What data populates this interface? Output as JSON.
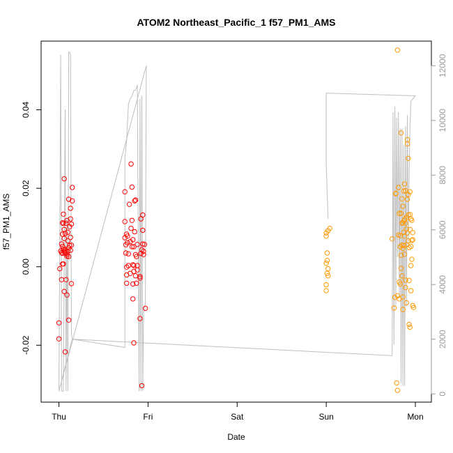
{
  "chart_data": {
    "type": "scatter",
    "title": "ATOM2 Northeast_Pacific_1 f57_PM1_AMS",
    "xlabel": "Date",
    "ylabel": "f57_PM1_AMS",
    "x_unit": "days since Thursday 00:00",
    "xlim": [
      -0.2,
      4.18
    ],
    "ylim": [
      -0.0345,
      0.0575
    ],
    "x_ticks": [
      {
        "value": 0,
        "label": "Thu"
      },
      {
        "value": 1,
        "label": "Fri"
      },
      {
        "value": 2,
        "label": "Sat"
      },
      {
        "value": 3,
        "label": "Sun"
      },
      {
        "value": 4,
        "label": "Mon"
      }
    ],
    "y_ticks": [
      {
        "value": -0.02,
        "label": "-0.02"
      },
      {
        "value": 0.0,
        "label": "0.00"
      },
      {
        "value": 0.02,
        "label": "0.02"
      },
      {
        "value": 0.04,
        "label": "0.04"
      }
    ],
    "y2_lim": [
      -300,
      12900
    ],
    "y2_ticks": [
      {
        "value": 0,
        "label": "0"
      },
      {
        "value": 2000,
        "label": "2000"
      },
      {
        "value": 4000,
        "label": "4000"
      },
      {
        "value": 6000,
        "label": "6000"
      },
      {
        "value": 8000,
        "label": "8000"
      },
      {
        "value": 10000,
        "label": "10000"
      },
      {
        "value": 12000,
        "label": "12000"
      }
    ],
    "grid": false,
    "colors": {
      "red_points": "#ff0000",
      "orange_points": "#ff9900",
      "altitude_line": "#bfbfbf",
      "right_axis": "#9a9a9a"
    },
    "series": [
      {
        "color": "#ff0000",
        "marker": "open-circle",
        "points": [
          [
            0.0,
            -0.0184
          ],
          [
            0.0,
            -0.0143
          ],
          [
            0.01,
            -0.0005
          ],
          [
            0.02,
            0.004
          ],
          [
            0.03,
            0.0058
          ],
          [
            0.03,
            0.0036
          ],
          [
            0.03,
            -0.0033
          ],
          [
            0.04,
            0.0007
          ],
          [
            0.04,
            0.0034
          ],
          [
            0.04,
            0.0083
          ],
          [
            0.04,
            0.0112
          ],
          [
            0.04,
            0.0052
          ],
          [
            0.05,
            0.0134
          ],
          [
            0.05,
            0.011
          ],
          [
            0.05,
            0.0045
          ],
          [
            0.05,
            0.0007
          ],
          [
            0.06,
            -0.0063
          ],
          [
            0.06,
            0.0039
          ],
          [
            0.06,
            0.0072
          ],
          [
            0.06,
            0.0224
          ],
          [
            0.06,
            0.0095
          ],
          [
            0.07,
            -0.0217
          ],
          [
            0.07,
            0.0085
          ],
          [
            0.07,
            0.0045
          ],
          [
            0.07,
            0.0035
          ],
          [
            0.08,
            -0.0033
          ],
          [
            0.08,
            0.0041
          ],
          [
            0.08,
            0.0111
          ],
          [
            0.09,
            -0.0072
          ],
          [
            0.09,
            0.0118
          ],
          [
            0.09,
            0.0032
          ],
          [
            0.09,
            0.0027
          ],
          [
            0.1,
            0.0039
          ],
          [
            0.1,
            0.0066
          ],
          [
            0.1,
            0.0088
          ],
          [
            0.11,
            0.0048
          ],
          [
            0.11,
            0.0026
          ],
          [
            0.11,
            -0.0136
          ],
          [
            0.11,
            0.0172
          ],
          [
            0.12,
            0.0102
          ],
          [
            0.12,
            0.0054
          ],
          [
            0.13,
            0.0122
          ],
          [
            0.13,
            0.0149
          ],
          [
            0.13,
            0.0075
          ],
          [
            0.13,
            0.0042
          ],
          [
            0.14,
            -0.0043
          ],
          [
            0.14,
            0.0109
          ],
          [
            0.14,
            0.0055
          ],
          [
            0.15,
            0.0202
          ],
          [
            0.15,
            0.0168
          ],
          [
            0.74,
            0.0191
          ],
          [
            0.74,
            0.0115
          ],
          [
            0.74,
            0.0074
          ],
          [
            0.75,
            0.0056
          ],
          [
            0.75,
            0.0035
          ],
          [
            0.76,
            -0.0001
          ],
          [
            0.76,
            -0.0042
          ],
          [
            0.76,
            -0.0021
          ],
          [
            0.76,
            0.0083
          ],
          [
            0.77,
            0.0078
          ],
          [
            0.77,
            0.0061
          ],
          [
            0.78,
            0.0033
          ],
          [
            0.78,
            0.0003
          ],
          [
            0.79,
            0.0159
          ],
          [
            0.8,
            0.0064
          ],
          [
            0.8,
            -0.0017
          ],
          [
            0.81,
            0.0262
          ],
          [
            0.81,
            0.0098
          ],
          [
            0.82,
            0.0118
          ],
          [
            0.82,
            0.0051
          ],
          [
            0.82,
            0.0203
          ],
          [
            0.83,
            0.0069
          ],
          [
            0.83,
            0.0005
          ],
          [
            0.83,
            -0.0044
          ],
          [
            0.83,
            -0.0082
          ],
          [
            0.84,
            0.0051
          ],
          [
            0.84,
            0.0003
          ],
          [
            0.84,
            -0.0012
          ],
          [
            0.84,
            -0.0194
          ],
          [
            0.85,
            0.0168
          ],
          [
            0.85,
            0.0089
          ],
          [
            0.86,
            0.017
          ],
          [
            0.86,
            -0.0023
          ],
          [
            0.86,
            0.0031
          ],
          [
            0.87,
            0.0026
          ],
          [
            0.87,
            -0.0042
          ],
          [
            0.88,
            -0.0008
          ],
          [
            0.88,
            0.0057
          ],
          [
            0.88,
            0.0003
          ],
          [
            0.91,
            -0.0132
          ],
          [
            0.91,
            -0.0029
          ],
          [
            0.91,
            -0.0025
          ],
          [
            0.92,
            0.0122
          ],
          [
            0.92,
            0.0034
          ],
          [
            0.93,
            -0.0303
          ],
          [
            0.93,
            0.0043
          ],
          [
            0.94,
            0.0132
          ],
          [
            0.94,
            0.0093
          ],
          [
            0.94,
            0.0058
          ],
          [
            0.95,
            0.0039
          ],
          [
            0.95,
            0.0031
          ],
          [
            0.96,
            0.0057
          ],
          [
            0.97,
            -0.0106
          ]
        ]
      },
      {
        "color": "#ff9900",
        "marker": "open-circle",
        "points": [
          [
            3.0,
            0.0078
          ],
          [
            3.0,
            0.0086
          ],
          [
            3.0,
            0.0009
          ],
          [
            3.0,
            -0.0046
          ],
          [
            3.0,
            -0.0061
          ],
          [
            3.01,
            0.0035
          ],
          [
            3.01,
            0.0016
          ],
          [
            3.01,
            -0.0017
          ],
          [
            3.02,
            -0.0023
          ],
          [
            3.02,
            -0.0005
          ],
          [
            3.02,
            0.0092
          ],
          [
            3.04,
            0.0098
          ],
          [
            3.74,
            0.0071
          ],
          [
            3.76,
            -0.0105
          ],
          [
            3.77,
            -0.0078
          ],
          [
            3.78,
            0.0187
          ],
          [
            3.78,
            0.0186
          ],
          [
            3.79,
            -0.0296
          ],
          [
            3.8,
            -0.0315
          ],
          [
            3.8,
            -0.0074
          ],
          [
            3.81,
            0.0081
          ],
          [
            3.81,
            0.0202
          ],
          [
            3.82,
            -0.0039
          ],
          [
            3.82,
            -0.0082
          ],
          [
            3.82,
            0.0136
          ],
          [
            3.83,
            0.0079
          ],
          [
            3.83,
            0.0051
          ],
          [
            3.83,
            -0.0044
          ],
          [
            3.84,
            0.0341
          ],
          [
            3.84,
            0.0136
          ],
          [
            3.84,
            0.0029
          ],
          [
            3.84,
            -0.0004
          ],
          [
            3.85,
            0.0111
          ],
          [
            3.85,
            0.0055
          ],
          [
            3.85,
            0.0173
          ],
          [
            3.85,
            -0.0023
          ],
          [
            3.86,
            0.0154
          ],
          [
            3.86,
            0.0112
          ],
          [
            3.86,
            0.0047
          ],
          [
            3.86,
            -0.0077
          ],
          [
            3.86,
            -0.0109
          ],
          [
            3.87,
            0.0193
          ],
          [
            3.87,
            0.0117
          ],
          [
            3.87,
            0.0088
          ],
          [
            3.87,
            0.0054
          ],
          [
            3.88,
            0.0211
          ],
          [
            3.88,
            0.0121
          ],
          [
            3.88,
            0.0078
          ],
          [
            3.88,
            0.0032
          ],
          [
            3.89,
            0.0194
          ],
          [
            3.89,
            0.0111
          ],
          [
            3.89,
            -0.0053
          ],
          [
            3.89,
            -0.0034
          ],
          [
            3.9,
            0.0126
          ],
          [
            3.9,
            0.0096
          ],
          [
            3.9,
            0.0056
          ],
          [
            3.9,
            -0.0092
          ],
          [
            3.91,
            0.0324
          ],
          [
            3.91,
            0.0313
          ],
          [
            3.91,
            0.0172
          ],
          [
            3.91,
            0.0086
          ],
          [
            3.92,
            0.0276
          ],
          [
            3.92,
            0.0184
          ],
          [
            3.92,
            0.0132
          ],
          [
            3.92,
            0.0066
          ],
          [
            3.93,
            0.0049
          ],
          [
            3.93,
            -0.0035
          ],
          [
            3.93,
            -0.0147
          ],
          [
            3.94,
            0.0191
          ],
          [
            3.94,
            0.0133
          ],
          [
            3.94,
            0.0095
          ],
          [
            3.94,
            -0.0154
          ],
          [
            3.95,
            0.0122
          ],
          [
            3.95,
            0.0052
          ],
          [
            3.95,
            0.0003
          ],
          [
            3.95,
            -0.0061
          ],
          [
            3.96,
            0.0118
          ],
          [
            3.96,
            0.0067
          ],
          [
            3.96,
            0.0019
          ],
          [
            3.97,
            0.0069
          ],
          [
            3.97,
            -0.0099
          ],
          [
            3.97,
            0.0087
          ],
          [
            3.98,
            -0.0104
          ],
          [
            3.8,
            0.0552
          ]
        ]
      }
    ],
    "altitude_trace": {
      "color": "#bfbfbf",
      "axis": "right",
      "points": [
        [
          0.0,
          100
        ],
        [
          0.02,
          12400
        ],
        [
          0.03,
          100
        ],
        [
          0.05,
          100
        ],
        [
          0.07,
          10400
        ],
        [
          0.08,
          100
        ],
        [
          0.09,
          6400
        ],
        [
          0.1,
          100
        ],
        [
          0.11,
          12500
        ],
        [
          0.12,
          12500
        ],
        [
          0.13,
          12400
        ],
        [
          0.14,
          2200
        ],
        [
          0.15,
          2000
        ],
        [
          0.74,
          1700
        ],
        [
          0.74,
          8600
        ],
        [
          0.76,
          9300
        ],
        [
          0.78,
          10600
        ],
        [
          0.8,
          10800
        ],
        [
          0.82,
          10900
        ],
        [
          0.84,
          11100
        ],
        [
          0.86,
          11100
        ],
        [
          0.88,
          11300
        ],
        [
          0.9,
          100
        ],
        [
          0.91,
          10800
        ],
        [
          0.92,
          100
        ],
        [
          0.93,
          10900
        ],
        [
          0.94,
          100
        ],
        [
          0.95,
          3000
        ],
        [
          0.97,
          3300
        ],
        [
          0.98,
          12000
        ],
        [
          0.0,
          100
        ],
        [
          0.15,
          2000
        ],
        [
          3.73,
          1400
        ],
        [
          3.74,
          1400
        ],
        [
          3.75,
          10300
        ],
        [
          3.76,
          1800
        ],
        [
          3.77,
          10500
        ],
        [
          3.78,
          3200
        ],
        [
          3.79,
          10100
        ],
        [
          3.8,
          5000
        ],
        [
          3.81,
          10300
        ],
        [
          3.82,
          3500
        ],
        [
          3.83,
          9700
        ],
        [
          3.84,
          400
        ],
        [
          3.85,
          9700
        ],
        [
          3.86,
          300
        ],
        [
          3.87,
          9100
        ],
        [
          3.88,
          300
        ],
        [
          3.89,
          9800
        ],
        [
          3.9,
          3200
        ],
        [
          3.91,
          10200
        ],
        [
          3.92,
          5500
        ],
        [
          3.93,
          7800
        ],
        [
          3.94,
          9800
        ],
        [
          3.95,
          10700
        ],
        [
          4.0,
          10900
        ],
        [
          4.0,
          10900
        ],
        [
          3.0,
          11000
        ],
        [
          3.0,
          8400
        ],
        [
          3.02,
          6400
        ]
      ]
    }
  }
}
